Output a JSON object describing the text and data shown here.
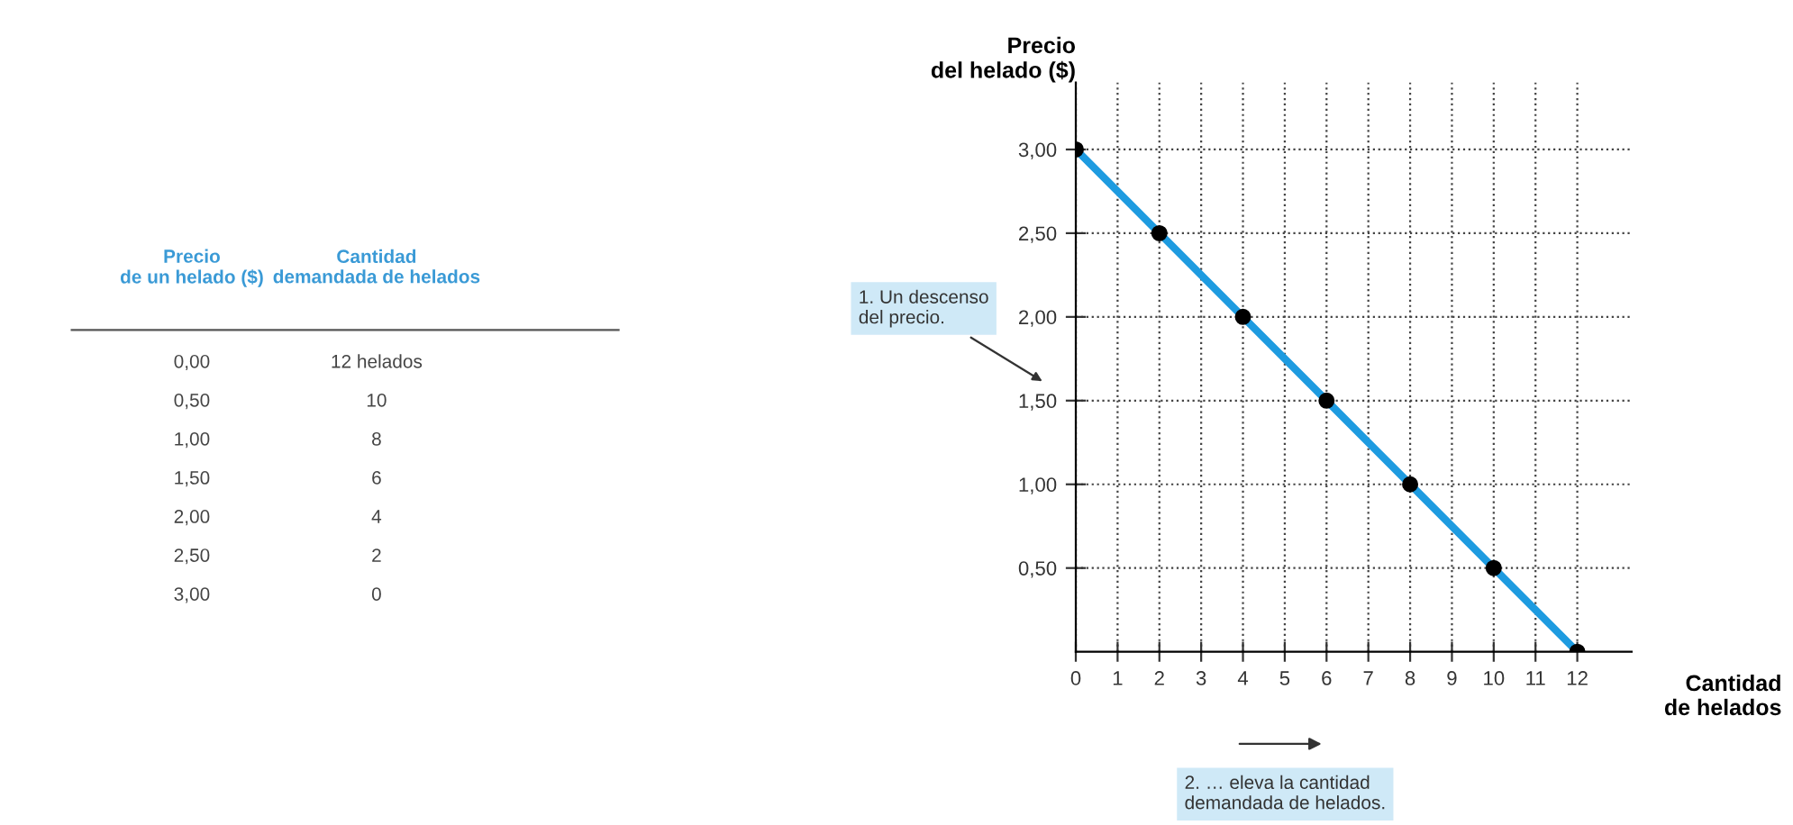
{
  "chart_data": {
    "type": "line",
    "xlabel": "Cantidad\nde helados",
    "ylabel": "Precio\ndel helado ($)",
    "x": [
      0,
      2,
      4,
      6,
      8,
      10,
      12
    ],
    "series": [
      {
        "color": "#1e9be0",
        "values": [
          3,
          2.5,
          2,
          1.5,
          1,
          0.5,
          0
        ]
      }
    ],
    "marker": "circle",
    "line_style": "solid",
    "grid": true,
    "xlim": [
      0,
      13.3
    ],
    "ylim": [
      0,
      3.4
    ],
    "xticks": [
      0,
      1,
      2,
      3,
      4,
      5,
      6,
      7,
      8,
      9,
      10,
      11,
      12
    ],
    "yticks": [
      {
        "value": 0.5,
        "label": "0,50"
      },
      {
        "value": 1,
        "label": "1,00"
      },
      {
        "value": 1.5,
        "label": "1,50"
      },
      {
        "value": 2,
        "label": "2,00"
      },
      {
        "value": 2.5,
        "label": "2,50"
      },
      {
        "value": 3,
        "label": "3,00"
      }
    ],
    "annotations": [
      "1. Un descenso\ndel precio.",
      "2. … eleva la cantidad\ndemandada de helados.",
      "Precio\nde un helado ($)",
      "Cantidad\ndemandada de helados",
      "0,00",
      "12 helados",
      "0,50",
      "10",
      "1,00",
      "8",
      "1,50",
      "6",
      "2,00",
      "4",
      "2,50",
      "2",
      "3,00",
      "0"
    ]
  }
}
